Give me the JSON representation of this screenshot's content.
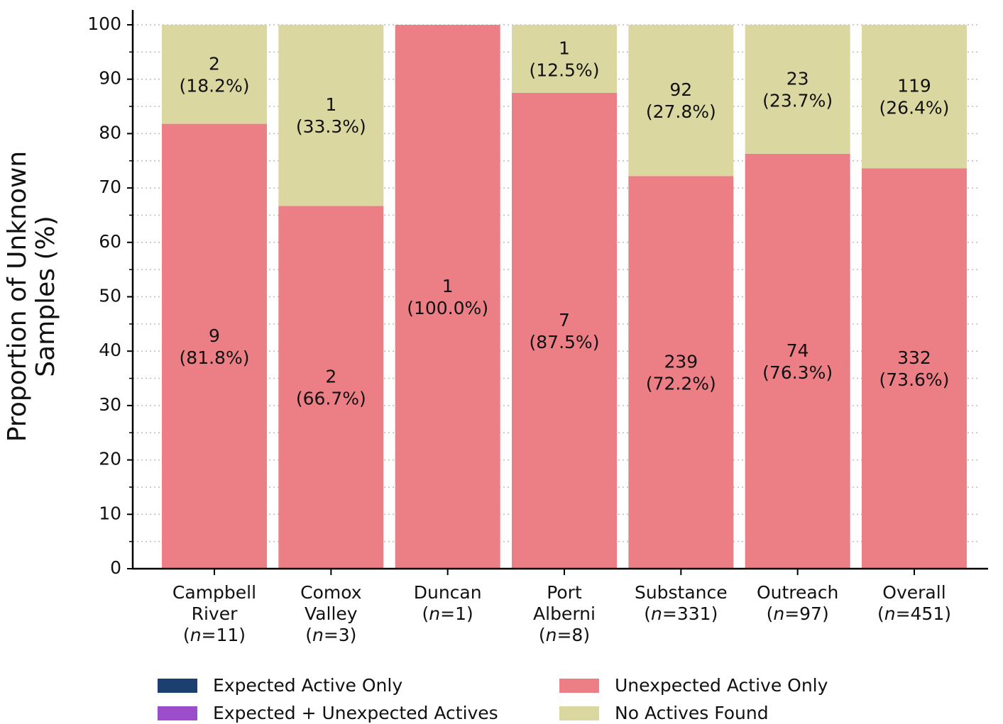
{
  "chart_data": {
    "type": "stacked_bar",
    "ylabel": "Proportion of Unknown\nSamples (%)",
    "categories": [
      "Campbell\nRiver\n(n=11)",
      "Comox\nValley\n(n=3)",
      "Duncan\n(n=1)",
      "Port\nAlberni\n(n=8)",
      "Substance\n(n=331)",
      "Outreach\n(n=97)",
      "Overall\n(n=451)"
    ],
    "series": [
      {
        "name": "Expected Active Only",
        "color": "#1b3f6e",
        "values": [
          0,
          0,
          0,
          0,
          0,
          0,
          0
        ]
      },
      {
        "name": "Expected + Unexpected Actives",
        "color": "#9b4dca",
        "values": [
          0,
          0,
          0,
          0,
          0,
          0,
          0
        ]
      },
      {
        "name": "Unexpected Active Only",
        "color": "#ec7f85",
        "values": [
          81.8,
          66.7,
          100.0,
          87.5,
          72.2,
          76.3,
          73.6
        ],
        "value_labels": [
          "9\n(81.8%)",
          "2\n(66.7%)",
          "1\n(100.0%)",
          "7\n(87.5%)",
          "239\n(72.2%)",
          "74\n(76.3%)",
          "332\n(73.6%)"
        ]
      },
      {
        "name": "No Actives Found",
        "color": "#dad8a0",
        "values": [
          18.2,
          33.3,
          0,
          12.5,
          27.8,
          23.7,
          26.4
        ],
        "value_labels": [
          "2\n(18.2%)",
          "1\n(33.3%)",
          null,
          "1\n(12.5%)",
          "92\n(27.8%)",
          "23\n(23.7%)",
          "119\n(26.4%)"
        ]
      }
    ],
    "ylim": [
      0,
      100
    ],
    "yticks": [
      0,
      10,
      20,
      30,
      40,
      50,
      60,
      70,
      80,
      90,
      100
    ],
    "yticks_minor": [
      5,
      15,
      25,
      35,
      45,
      55,
      65,
      75,
      85,
      95
    ],
    "grid": true,
    "legend": "bottom"
  }
}
